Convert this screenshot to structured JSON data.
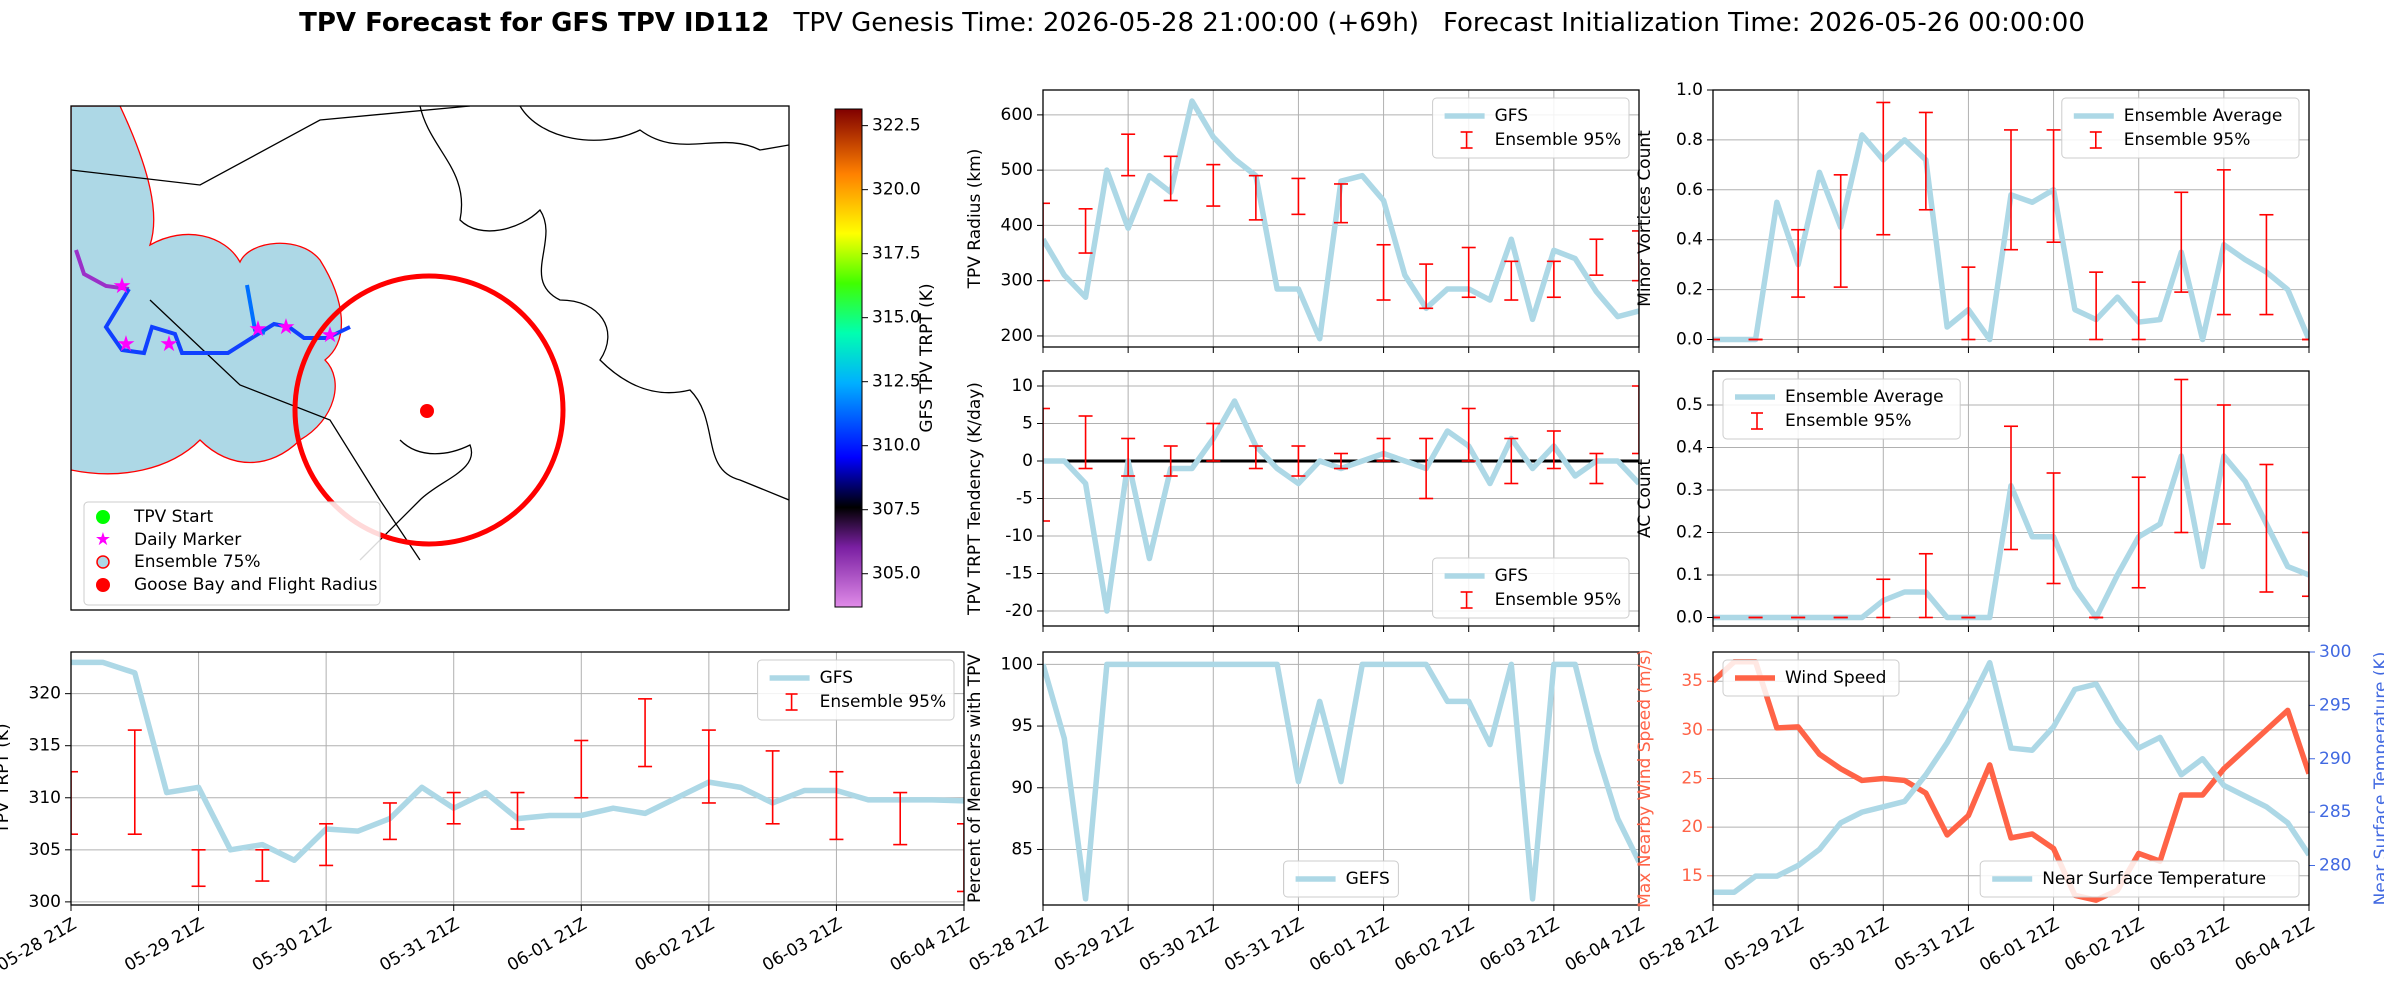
{
  "title": {
    "main": "TPV Forecast for GFS TPV ID112",
    "genesis": "TPV Genesis Time: 2026-05-28 21:00:00 (+69h)",
    "init": "Forecast Initialization Time: 2026-05-26 00:00:00"
  },
  "map": {
    "legend": [
      "TPV Start",
      "Daily Marker",
      "Ensemble 75%",
      "Goose Bay and Flight Radius"
    ],
    "colorbar": {
      "label": "GFS TPV TRPT (K)",
      "lim": [
        303.7,
        323.15
      ],
      "ticks": [
        {
          "value": 305,
          "label": "305.0"
        },
        {
          "value": 307.5,
          "label": "307.5"
        },
        {
          "value": 310,
          "label": "310.0"
        },
        {
          "value": 312.5,
          "label": "312.5"
        },
        {
          "value": 315,
          "label": "315.0"
        },
        {
          "value": 317.5,
          "label": "317.5"
        },
        {
          "value": 320,
          "label": "320.0"
        },
        {
          "value": 322.5,
          "label": "322.5"
        }
      ]
    }
  },
  "chart_data": [
    {
      "type": "line",
      "ylabel": "TPV Radius (km)",
      "ylim": [
        180,
        645
      ],
      "yticks": [
        200,
        300,
        400,
        500,
        600
      ],
      "grid": true,
      "legend": "upper right",
      "series": [
        {
          "name": "GFS",
          "color": "#add8e6",
          "values": [
            375,
            310,
            270,
            500,
            395,
            490,
            460,
            625,
            560,
            520,
            490,
            285,
            285,
            195,
            480,
            490,
            445,
            310,
            250,
            285,
            285,
            265,
            375,
            230,
            355,
            340,
            280,
            235,
            245
          ]
        },
        {
          "name": "Ensemble 95%",
          "type": "errorbar",
          "color": "#ff0000",
          "low": [
            300,
            null,
            350,
            null,
            490,
            null,
            445,
            null,
            435,
            null,
            410,
            null,
            420,
            null,
            405,
            null,
            265,
            null,
            250,
            null,
            270,
            null,
            265,
            null,
            270,
            null,
            310,
            null,
            300
          ],
          "high": [
            440,
            null,
            430,
            null,
            565,
            null,
            525,
            null,
            510,
            null,
            490,
            null,
            485,
            null,
            475,
            null,
            365,
            null,
            330,
            null,
            360,
            null,
            335,
            null,
            335,
            null,
            375,
            null,
            390
          ]
        }
      ]
    },
    {
      "type": "line",
      "ylabel": "Minor Vortices Count",
      "ylim": [
        -0.03,
        1.0
      ],
      "yticks": [
        {
          "value": 0,
          "label": "0.0"
        },
        0.2,
        0.4,
        0.6,
        0.8,
        {
          "value": 1,
          "label": "1.0"
        }
      ],
      "grid": true,
      "legend": "upper right",
      "series": [
        {
          "name": "Ensemble Average",
          "color": "#add8e6",
          "values": [
            0,
            0,
            0,
            0.55,
            0.3,
            0.67,
            0.45,
            0.82,
            0.72,
            0.8,
            0.72,
            0.05,
            0.12,
            0,
            0.58,
            0.55,
            0.6,
            0.12,
            0.08,
            0.17,
            0.07,
            0.08,
            0.35,
            0,
            0.38,
            0.32,
            0.27,
            0.2,
            0
          ]
        },
        {
          "name": "Ensemble 95%",
          "type": "errorbar",
          "color": "#ff0000",
          "low": [
            0,
            null,
            0,
            null,
            0.17,
            null,
            0.21,
            null,
            0.42,
            null,
            0.52,
            null,
            0,
            null,
            0.36,
            null,
            0.39,
            null,
            0,
            null,
            0,
            null,
            0.19,
            null,
            0.1,
            null,
            0.1,
            null,
            0
          ],
          "high": [
            0,
            null,
            0,
            null,
            0.44,
            null,
            0.66,
            null,
            0.95,
            null,
            0.91,
            null,
            0.29,
            null,
            0.84,
            null,
            0.84,
            null,
            0.27,
            null,
            0.23,
            null,
            0.59,
            null,
            0.68,
            null,
            0.5,
            null,
            0
          ]
        }
      ]
    },
    {
      "type": "line",
      "ylabel": "TPV TRPT Tendency (K/day)",
      "ylim": [
        -22,
        12
      ],
      "yticks": [
        -20,
        -15,
        -10,
        -5,
        0,
        5,
        10
      ],
      "grid": true,
      "legend": "lower right",
      "zero_line": true,
      "series": [
        {
          "name": "GFS",
          "color": "#add8e6",
          "values": [
            0,
            0,
            -3,
            -20,
            0,
            -13,
            -1,
            -1,
            3,
            8,
            2,
            -1,
            -3,
            0,
            -1,
            0,
            1,
            0,
            -1,
            4,
            2,
            -3,
            3,
            -1,
            2,
            -2,
            0,
            0,
            -3
          ]
        },
        {
          "name": "Ensemble 95%",
          "type": "errorbar",
          "color": "#ff0000",
          "low": [
            -8,
            null,
            -1,
            null,
            -2,
            null,
            -2,
            null,
            0,
            null,
            -1,
            null,
            -2,
            null,
            -1,
            null,
            0,
            null,
            -5,
            null,
            0,
            null,
            -3,
            null,
            -1,
            null,
            -3,
            null,
            1
          ],
          "high": [
            7,
            null,
            6,
            null,
            3,
            null,
            2,
            null,
            5,
            null,
            2,
            null,
            2,
            null,
            1,
            null,
            3,
            null,
            3,
            null,
            7,
            null,
            3,
            null,
            4,
            null,
            1,
            null,
            10
          ]
        }
      ]
    },
    {
      "type": "line",
      "ylabel": "AC Count",
      "ylim": [
        -0.02,
        0.58
      ],
      "yticks": [
        {
          "value": 0,
          "label": "0.0"
        },
        0.1,
        0.2,
        0.3,
        0.4,
        0.5
      ],
      "grid": true,
      "legend": "upper left",
      "series": [
        {
          "name": "Ensemble Average",
          "color": "#add8e6",
          "values": [
            0,
            0,
            0,
            0,
            0,
            0,
            0,
            0,
            0.04,
            0.06,
            0.06,
            0,
            0,
            0,
            0.31,
            0.19,
            0.19,
            0.07,
            0,
            0.1,
            0.19,
            0.22,
            0.38,
            0.12,
            0.38,
            0.32,
            0.22,
            0.12,
            0.1
          ]
        },
        {
          "name": "Ensemble 95%",
          "type": "errorbar",
          "color": "#ff0000",
          "low": [
            0,
            null,
            0,
            null,
            0,
            null,
            0,
            null,
            0,
            null,
            0,
            null,
            0,
            null,
            0.16,
            null,
            0.08,
            null,
            0,
            null,
            0.07,
            null,
            0.2,
            null,
            0.22,
            null,
            0.06,
            null,
            0.05
          ],
          "high": [
            0,
            null,
            0,
            null,
            0,
            null,
            0,
            null,
            0.09,
            null,
            0.15,
            null,
            0,
            null,
            0.45,
            null,
            0.34,
            null,
            0,
            null,
            0.33,
            null,
            0.56,
            null,
            0.5,
            null,
            0.36,
            null,
            0.2
          ]
        }
      ]
    },
    {
      "type": "line",
      "ylabel": "TPV TRPT (K)",
      "ylim": [
        299.7,
        324
      ],
      "yticks": [
        300,
        305,
        310,
        315,
        320
      ],
      "grid": true,
      "legend": "upper right",
      "categories": [
        "05-28 21Z",
        null,
        null,
        null,
        "05-29 21Z",
        null,
        null,
        null,
        "05-30 21Z",
        null,
        null,
        null,
        "05-31 21Z",
        null,
        null,
        null,
        "06-01 21Z",
        null,
        null,
        null,
        "06-02 21Z",
        null,
        null,
        null,
        "06-03 21Z",
        null,
        null,
        null,
        "06-04 21Z"
      ],
      "series": [
        {
          "name": "GFS",
          "color": "#add8e6",
          "values": [
            323,
            323,
            322,
            310.5,
            311,
            305,
            305.5,
            304,
            307,
            306.8,
            308,
            311,
            309,
            310.5,
            308,
            308.3,
            308.3,
            309,
            308.5,
            310,
            311.5,
            311,
            309.5,
            310.7,
            310.7,
            309.8,
            309.8,
            309.8,
            309.7
          ]
        },
        {
          "name": "Ensemble 95%",
          "type": "errorbar",
          "color": "#ff0000",
          "low": [
            306.5,
            null,
            306.5,
            null,
            301.5,
            null,
            302,
            null,
            303.5,
            null,
            306,
            null,
            307.5,
            null,
            307,
            null,
            310,
            null,
            313,
            null,
            309.5,
            null,
            307.5,
            null,
            306,
            null,
            305.5,
            null,
            301
          ],
          "high": [
            312.5,
            null,
            316.5,
            null,
            305,
            null,
            305,
            null,
            307.5,
            null,
            309.5,
            null,
            310.5,
            null,
            310.5,
            null,
            315.5,
            null,
            319.5,
            null,
            316.5,
            null,
            314.5,
            null,
            312.5,
            null,
            310.5,
            null,
            307.5
          ]
        }
      ]
    },
    {
      "type": "line",
      "ylabel": "Percent of Members with TPV",
      "ylim": [
        80.5,
        101
      ],
      "yticks": [
        85,
        90,
        95,
        100
      ],
      "grid": true,
      "legend": "lower center",
      "categories": [
        "05-28 21Z",
        null,
        null,
        null,
        "05-29 21Z",
        null,
        null,
        null,
        "05-30 21Z",
        null,
        null,
        null,
        "05-31 21Z",
        null,
        null,
        null,
        "06-01 21Z",
        null,
        null,
        null,
        "06-02 21Z",
        null,
        null,
        null,
        "06-03 21Z",
        null,
        null,
        null,
        "06-04 21Z"
      ],
      "series": [
        {
          "name": "GEFS",
          "color": "#add8e6",
          "values": [
            100,
            94,
            81,
            100,
            100,
            100,
            100,
            100,
            100,
            100,
            100,
            100,
            90.5,
            97,
            90.5,
            100,
            100,
            100,
            100,
            97,
            97,
            93.5,
            100,
            81,
            100,
            100,
            93,
            87.5,
            84
          ]
        }
      ]
    },
    {
      "type": "line",
      "ylabel": "Max Nearby Wind Speed (m/s)",
      "y2label": "Near Surface Temperature (K)",
      "ycolor": "#ff6347",
      "y2color": "#4169e1",
      "ylim": [
        12,
        38
      ],
      "yticks": [
        15,
        20,
        25,
        30,
        35
      ],
      "y2lim": [
        276.3,
        300
      ],
      "y2ticks": [
        280,
        285,
        290,
        295,
        300
      ],
      "grid": true,
      "categories": [
        "05-28 21Z",
        null,
        null,
        null,
        "05-29 21Z",
        null,
        null,
        null,
        "05-30 21Z",
        null,
        null,
        null,
        "05-31 21Z",
        null,
        null,
        null,
        "06-01 21Z",
        null,
        null,
        null,
        "06-02 21Z",
        null,
        null,
        null,
        "06-03 21Z",
        null,
        null,
        null,
        "06-04 21Z"
      ],
      "series": [
        {
          "name": "Wind Speed",
          "color": "#ff6347",
          "legend": "upper left",
          "values": [
            35,
            37,
            37,
            30.2,
            30.3,
            27.5,
            26,
            24.8,
            25,
            24.8,
            23.5,
            19.2,
            21.2,
            26.4,
            18.9,
            19.3,
            17.8,
            13,
            12.5,
            13.5,
            17.3,
            16.5,
            23.3,
            23.3,
            26,
            28,
            30,
            32,
            25.5
          ]
        },
        {
          "name": "Near Surface Temperature",
          "color": "#add8e6",
          "axis": "y2",
          "legend": "lower right",
          "values": [
            277.5,
            277.5,
            279,
            279,
            280,
            281.5,
            284,
            285,
            285.5,
            286,
            288.5,
            291.5,
            295,
            299,
            291,
            290.8,
            293,
            296.5,
            297,
            293.5,
            291,
            292,
            288.5,
            290,
            287.5,
            286.5,
            285.5,
            284,
            281
          ]
        }
      ]
    }
  ]
}
